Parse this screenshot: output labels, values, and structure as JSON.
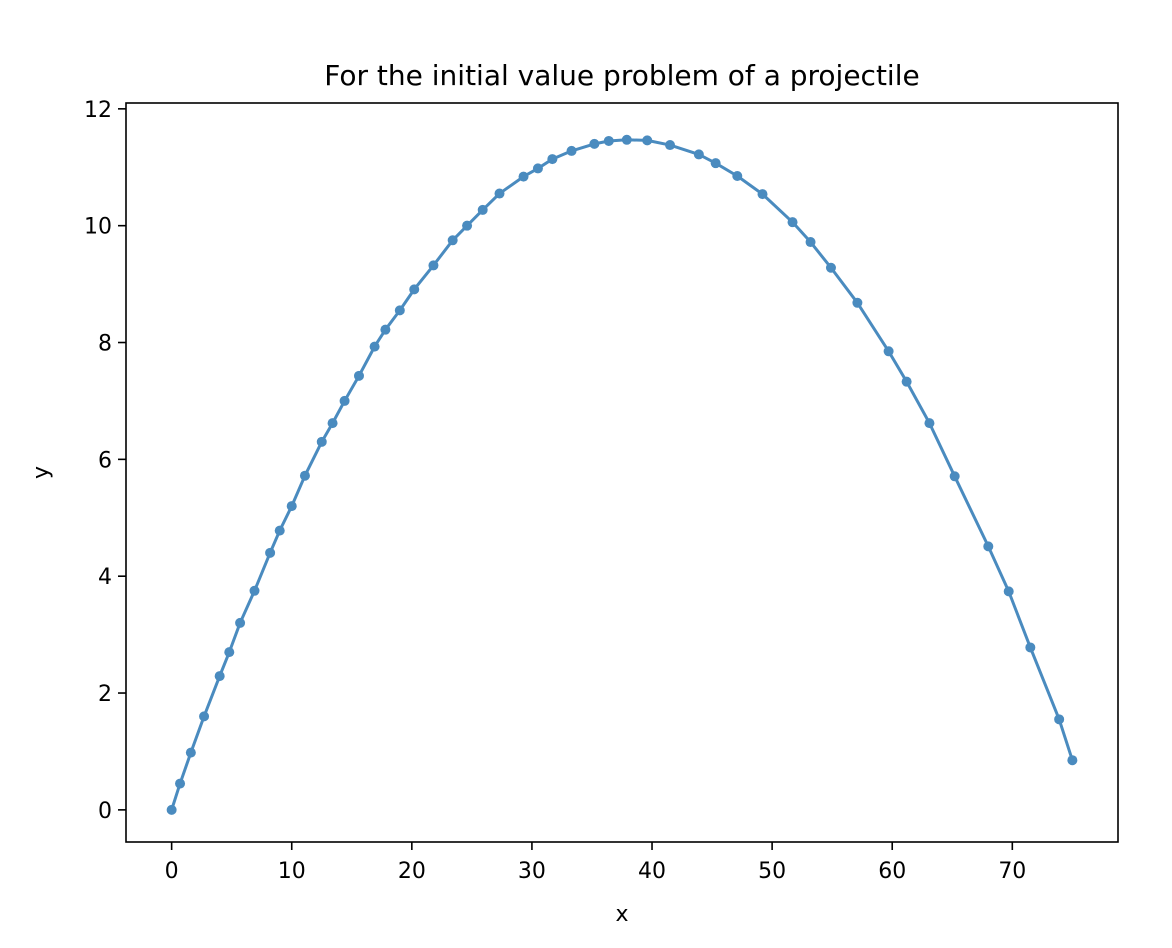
{
  "chart_data": {
    "type": "line",
    "title": "For the initial value problem of a projectile",
    "xlabel": "x",
    "ylabel": "y",
    "xlim": [
      -3.8,
      78.8
    ],
    "ylim": [
      -0.55,
      12.1
    ],
    "xticks": [
      0,
      10,
      20,
      30,
      40,
      50,
      60,
      70
    ],
    "yticks": [
      0,
      2,
      4,
      6,
      8,
      10,
      12
    ],
    "grid": false,
    "legend": "none",
    "series": [
      {
        "color": "#4a8bbf",
        "marker": "circle",
        "x": [
          0.0,
          0.7,
          1.6,
          2.7,
          4.0,
          4.8,
          5.7,
          6.9,
          8.2,
          9.0,
          10.0,
          11.1,
          12.5,
          13.4,
          14.4,
          15.6,
          16.9,
          17.8,
          19.0,
          20.2,
          21.8,
          23.4,
          24.6,
          25.9,
          27.3,
          29.3,
          30.5,
          31.7,
          33.3,
          35.2,
          36.4,
          37.9,
          39.6,
          41.5,
          43.9,
          45.3,
          47.1,
          49.2,
          51.7,
          53.2,
          54.9,
          57.1,
          59.7,
          61.2,
          63.1,
          65.2,
          68.0,
          69.7,
          71.5,
          73.9,
          75.0
        ],
        "y": [
          0.0,
          0.45,
          0.98,
          1.6,
          2.29,
          2.7,
          3.2,
          3.75,
          4.4,
          4.78,
          5.2,
          5.72,
          6.3,
          6.62,
          7.0,
          7.43,
          7.93,
          8.22,
          8.55,
          8.91,
          9.32,
          9.75,
          10.0,
          10.27,
          10.55,
          10.84,
          10.98,
          11.14,
          11.28,
          11.4,
          11.45,
          11.47,
          11.46,
          11.38,
          11.22,
          11.07,
          10.85,
          10.54,
          10.06,
          9.72,
          9.28,
          8.68,
          7.85,
          7.33,
          6.62,
          5.71,
          4.51,
          3.74,
          2.78,
          1.55,
          0.85
        ]
      }
    ]
  }
}
